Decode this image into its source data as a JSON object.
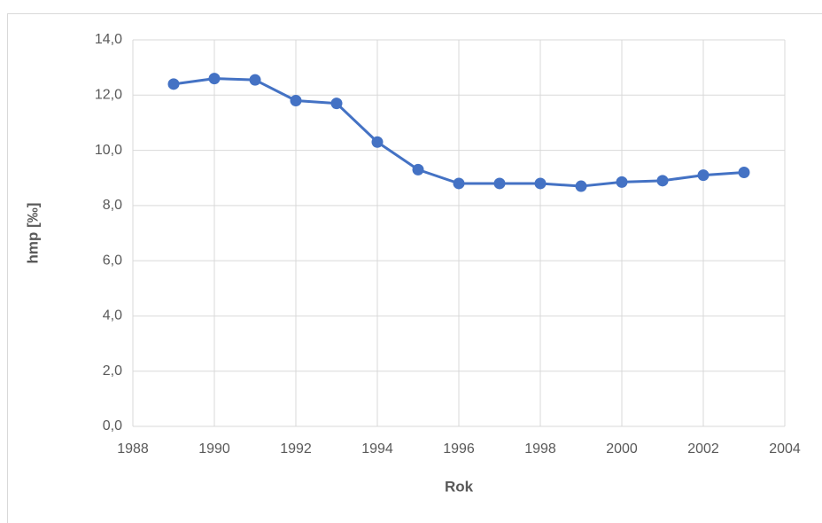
{
  "chart_data": {
    "type": "line",
    "x_label": "Rok",
    "y_label": "hmp [‰]",
    "x": [
      1989,
      1990,
      1991,
      1992,
      1993,
      1994,
      1995,
      1996,
      1997,
      1998,
      1999,
      2000,
      2001,
      2002,
      2003
    ],
    "series": [
      {
        "name": "hmp",
        "color": "#4472c4",
        "values": [
          12.4,
          12.6,
          12.55,
          11.8,
          11.7,
          10.3,
          9.3,
          8.8,
          8.8,
          8.8,
          8.7,
          8.85,
          8.9,
          9.1,
          9.2
        ]
      }
    ],
    "xlim": [
      1988,
      2004
    ],
    "xticks": [
      1988,
      1990,
      1992,
      1994,
      1996,
      1998,
      2000,
      2002,
      2004
    ],
    "ylim": [
      0,
      14
    ],
    "yticks": [
      {
        "value": 0,
        "label": "0,0"
      },
      {
        "value": 2,
        "label": "2,0"
      },
      {
        "value": 4,
        "label": "4,0"
      },
      {
        "value": 6,
        "label": "6,0"
      },
      {
        "value": 8,
        "label": "8,0"
      },
      {
        "value": 10,
        "label": "10,0"
      },
      {
        "value": 12,
        "label": "12,0"
      },
      {
        "value": 14,
        "label": "14,0"
      }
    ],
    "grid": true
  }
}
